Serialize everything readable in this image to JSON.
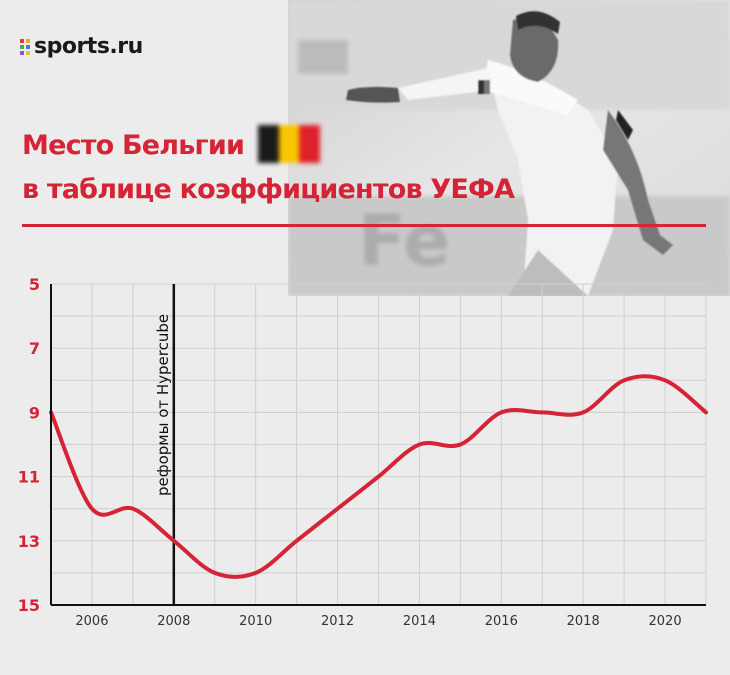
{
  "brand": {
    "name": "sports.ru",
    "dot_colors": [
      "#e23d3d",
      "#f5a623",
      "#3db24a",
      "#4a74d9",
      "#9b4ad9",
      "#e2c23d"
    ]
  },
  "title": {
    "line1": "Место Бельгии",
    "line2": "в таблице коэффициентов УЕФА"
  },
  "flag": {
    "colors": [
      "#1a1a1a",
      "#f7c600",
      "#e0202a"
    ]
  },
  "colors": {
    "accent": "#d42435",
    "line": "#d42435"
  },
  "chart_data": {
    "type": "line",
    "title": "Место Бельгии в таблице коэффициентов УЕФА",
    "x": [
      2005,
      2006,
      2007,
      2008,
      2009,
      2010,
      2011,
      2012,
      2013,
      2014,
      2015,
      2016,
      2017,
      2018,
      2019,
      2020,
      2021
    ],
    "y": [
      9,
      12,
      12,
      13,
      14,
      14,
      13,
      12,
      11,
      10,
      10,
      9,
      9,
      9,
      8,
      8,
      9
    ],
    "xlim": [
      2005,
      2021
    ],
    "ylim": [
      5,
      15
    ],
    "y_inverted": true,
    "xticks": [
      "2006",
      "2008",
      "2010",
      "2012",
      "2014",
      "2016",
      "2018",
      "2020"
    ],
    "yticks": [
      "5",
      "7",
      "9",
      "11",
      "13",
      "15"
    ],
    "grid": true,
    "annotation": {
      "x": 2008,
      "text": "реформы от Hypercube"
    }
  }
}
